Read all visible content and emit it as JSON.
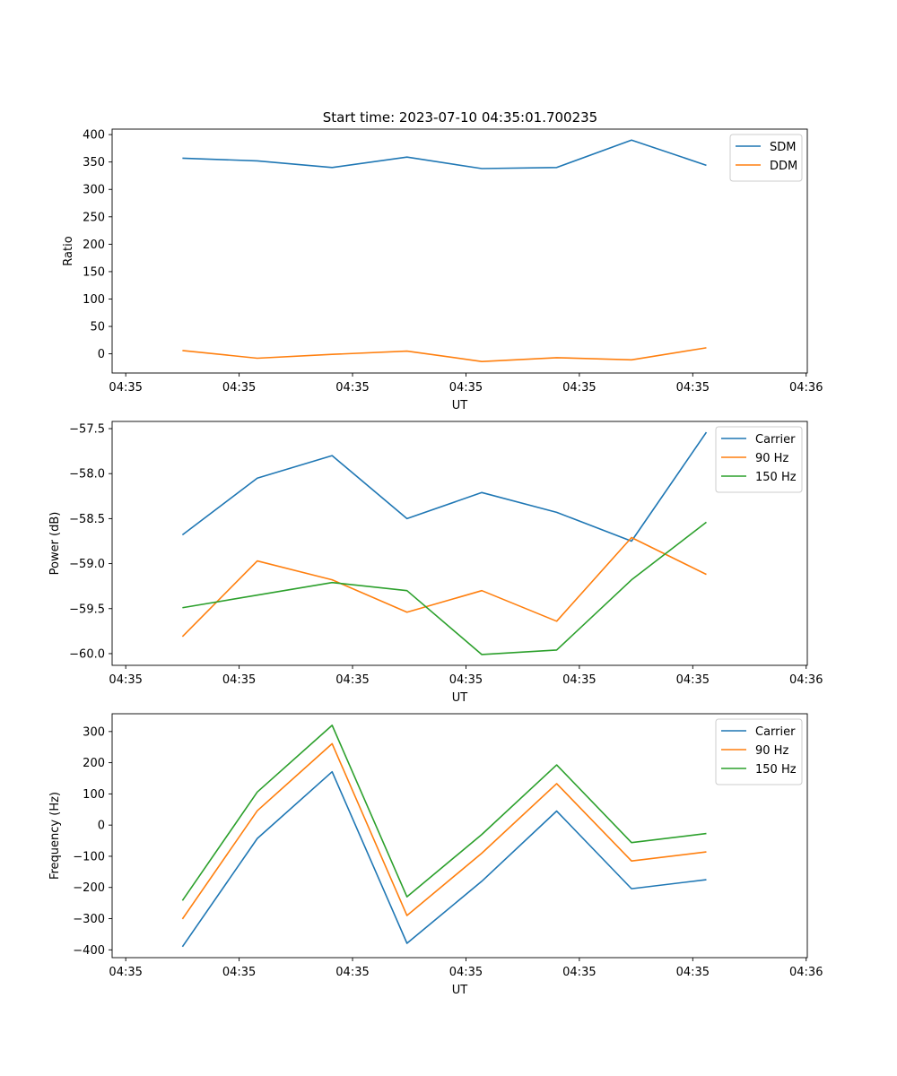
{
  "figure": {
    "title": "Start time: 2023-07-10 04:35:01.700235"
  },
  "chart_data": [
    {
      "type": "line",
      "xlabel": "UT",
      "ylabel": "Ratio",
      "x_tick_labels": [
        "04:35",
        "04:35",
        "04:35",
        "04:35",
        "04:35",
        "04:35",
        "04:36"
      ],
      "x_ticks": [
        0,
        1,
        2,
        3,
        4,
        5,
        6
      ],
      "xlim": [
        -0.12,
        6.01
      ],
      "ylim": [
        -35,
        410
      ],
      "y_ticks": [
        0,
        50,
        100,
        150,
        200,
        250,
        300,
        350,
        400
      ],
      "y_tick_labels": [
        "0",
        "50",
        "100",
        "150",
        "200",
        "250",
        "300",
        "350",
        "400"
      ],
      "x": [
        0.5,
        1.16,
        1.82,
        2.48,
        3.14,
        3.8,
        4.46,
        5.12
      ],
      "series": [
        {
          "name": "SDM",
          "color": "#1f77b4",
          "values": [
            357,
            352,
            340,
            359,
            338,
            340,
            390,
            344
          ]
        },
        {
          "name": "DDM",
          "color": "#ff7f0e",
          "values": [
            6,
            -8,
            -1,
            5,
            -14,
            -7,
            -11,
            11
          ]
        }
      ],
      "legend": "top-right"
    },
    {
      "type": "line",
      "xlabel": "UT",
      "ylabel": "Power (dB)",
      "x_tick_labels": [
        "04:35",
        "04:35",
        "04:35",
        "04:35",
        "04:35",
        "04:35",
        "04:36"
      ],
      "x_ticks": [
        0,
        1,
        2,
        3,
        4,
        5,
        6
      ],
      "xlim": [
        -0.12,
        6.01
      ],
      "ylim": [
        -60.13,
        -57.42
      ],
      "y_ticks": [
        -60.0,
        -59.5,
        -59.0,
        -58.5,
        -58.0,
        -57.5
      ],
      "y_tick_labels": [
        "−60.0",
        "−59.5",
        "−59.0",
        "−58.5",
        "−58.0",
        "−57.5"
      ],
      "x": [
        0.5,
        1.16,
        1.82,
        2.48,
        3.14,
        3.8,
        4.46,
        5.12
      ],
      "series": [
        {
          "name": "Carrier",
          "color": "#1f77b4",
          "values": [
            -58.68,
            -58.05,
            -57.8,
            -58.5,
            -58.21,
            -58.43,
            -58.75,
            -57.54
          ]
        },
        {
          "name": "90 Hz",
          "color": "#ff7f0e",
          "values": [
            -59.81,
            -58.97,
            -59.18,
            -59.54,
            -59.3,
            -59.64,
            -58.71,
            -59.12
          ]
        },
        {
          "name": "150 Hz",
          "color": "#2ca02c",
          "values": [
            -59.49,
            -59.35,
            -59.21,
            -59.3,
            -60.01,
            -59.96,
            -59.18,
            -58.54
          ]
        }
      ],
      "legend": "top-right"
    },
    {
      "type": "line",
      "xlabel": "UT",
      "ylabel": "Frequency (Hz)",
      "x_tick_labels": [
        "04:35",
        "04:35",
        "04:35",
        "04:35",
        "04:35",
        "04:35",
        "04:36"
      ],
      "x_ticks": [
        0,
        1,
        2,
        3,
        4,
        5,
        6
      ],
      "xlim": [
        -0.12,
        6.01
      ],
      "ylim": [
        -425,
        357
      ],
      "y_ticks": [
        -400,
        -300,
        -200,
        -100,
        0,
        100,
        200,
        300
      ],
      "y_tick_labels": [
        "−400",
        "−300",
        "−200",
        "−100",
        "0",
        "100",
        "200",
        "300"
      ],
      "x": [
        0.5,
        1.16,
        1.82,
        2.48,
        3.14,
        3.8,
        4.46,
        5.12
      ],
      "series": [
        {
          "name": "Carrier",
          "color": "#1f77b4",
          "values": [
            -390,
            -43,
            171,
            -379,
            -180,
            45,
            -204,
            -175
          ]
        },
        {
          "name": "90 Hz",
          "color": "#ff7f0e",
          "values": [
            -301,
            46,
            261,
            -290,
            -90,
            133,
            -115,
            -86
          ]
        },
        {
          "name": "150 Hz",
          "color": "#2ca02c",
          "values": [
            -242,
            106,
            320,
            -230,
            -30,
            193,
            -56,
            -27
          ]
        }
      ],
      "legend": "top-right"
    }
  ]
}
